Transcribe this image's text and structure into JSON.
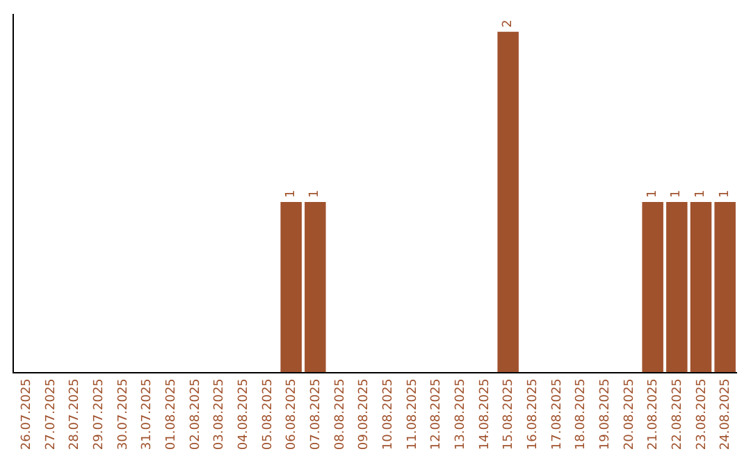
{
  "chart_data": {
    "type": "bar",
    "categories": [
      "26.07.2025",
      "27.07.2025",
      "28.07.2025",
      "29.07.2025",
      "30.07.2025",
      "31.07.2025",
      "01.08.2025",
      "02.08.2025",
      "03.08.2025",
      "04.08.2025",
      "05.08.2025",
      "06.08.2025",
      "07.08.2025",
      "08.08.2025",
      "09.08.2025",
      "10.08.2025",
      "11.08.2025",
      "12.08.2025",
      "13.08.2025",
      "14.08.2025",
      "15.08.2025",
      "16.08.2025",
      "17.08.2025",
      "18.08.2025",
      "19.08.2025",
      "20.08.2025",
      "21.08.2025",
      "22.08.2025",
      "23.08.2025",
      "24.08.2025"
    ],
    "values": [
      0,
      0,
      0,
      0,
      0,
      0,
      0,
      0,
      0,
      0,
      0,
      1,
      1,
      0,
      0,
      0,
      0,
      0,
      0,
      0,
      2,
      0,
      0,
      0,
      0,
      0,
      1,
      1,
      1,
      1
    ],
    "value_labels": [
      null,
      null,
      null,
      null,
      null,
      null,
      null,
      null,
      null,
      null,
      null,
      "1",
      "1",
      null,
      null,
      null,
      null,
      null,
      null,
      null,
      "2",
      null,
      null,
      null,
      null,
      null,
      "1",
      "1",
      "1",
      "1"
    ],
    "color": "#a0522d",
    "legend": false,
    "tick_labels": "x"
  }
}
